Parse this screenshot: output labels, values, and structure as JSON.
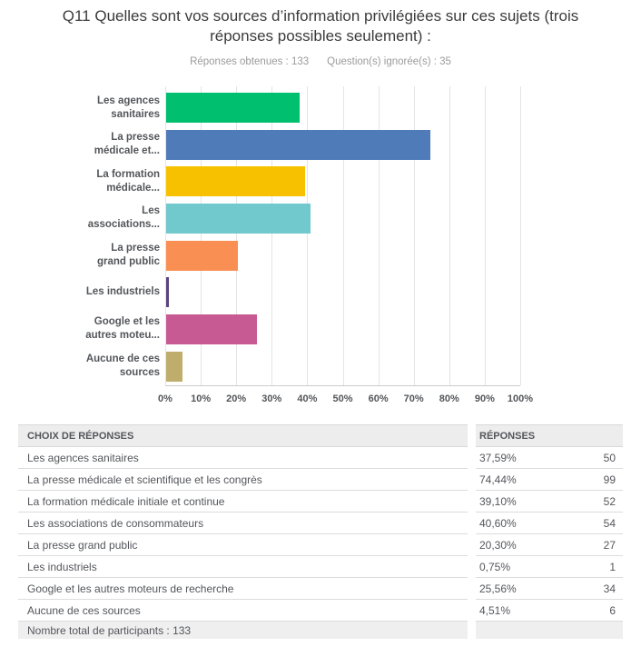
{
  "header": {
    "title": "Q11 Quelles sont vos sources d’information privilégiées sur ces sujets (trois réponses possibles seulement) :",
    "answered": "Réponses obtenues : 133",
    "skipped": "Question(s) ignorée(s) : 35"
  },
  "chart_data": {
    "type": "bar",
    "orientation": "horizontal",
    "title": "Q11 Quelles sont vos sources d’information privilégiées sur ces sujets (trois réponses possibles seulement) :",
    "categories": [
      "Les agences sanitaires",
      "La presse médicale et scientifique et les congrès",
      "La formation médicale initiale et continue",
      "Les associations de consommateurs",
      "La presse grand public",
      "Les industriels",
      "Google et les autres moteurs de recherche",
      "Aucune de ces sources"
    ],
    "display_labels": [
      [
        "Les agences",
        "sanitaires"
      ],
      [
        "La presse",
        "médicale et..."
      ],
      [
        "La formation",
        "médicale..."
      ],
      [
        "Les",
        "associations..."
      ],
      [
        "La presse",
        "grand public"
      ],
      [
        "Les industriels"
      ],
      [
        "Google et les",
        "autres moteu..."
      ],
      [
        "Aucune de ces",
        "sources"
      ]
    ],
    "values": [
      37.59,
      74.44,
      39.1,
      40.6,
      20.3,
      0.75,
      25.56,
      4.51
    ],
    "bar_colors": [
      "#00bf6f",
      "#4f7cb8",
      "#f7c100",
      "#71c9ce",
      "#f98f52",
      "#56457e",
      "#c85a93",
      "#bfad6b"
    ],
    "x_ticks": [
      "0%",
      "10%",
      "20%",
      "30%",
      "40%",
      "50%",
      "60%",
      "70%",
      "80%",
      "90%",
      "100%"
    ],
    "xlim": [
      0,
      100
    ],
    "grid": true,
    "legend": "none"
  },
  "table": {
    "headers": {
      "choices": "CHOIX DE RÉPONSES",
      "responses": "RÉPONSES"
    },
    "rows": [
      {
        "choice": "Les agences sanitaires",
        "pct": "37,59%",
        "count": "50"
      },
      {
        "choice": "La presse médicale et scientifique et les congrès",
        "pct": "74,44%",
        "count": "99"
      },
      {
        "choice": "La formation médicale initiale et continue",
        "pct": "39,10%",
        "count": "52"
      },
      {
        "choice": "Les associations de consommateurs",
        "pct": "40,60%",
        "count": "54"
      },
      {
        "choice": "La presse grand public",
        "pct": "20,30%",
        "count": "27"
      },
      {
        "choice": "Les industriels",
        "pct": "0,75%",
        "count": "1"
      },
      {
        "choice": "Google et les autres moteurs de recherche",
        "pct": "25,56%",
        "count": "34"
      },
      {
        "choice": "Aucune de ces sources",
        "pct": "4,51%",
        "count": "6"
      }
    ],
    "footer": "Nombre total de participants : 133"
  }
}
